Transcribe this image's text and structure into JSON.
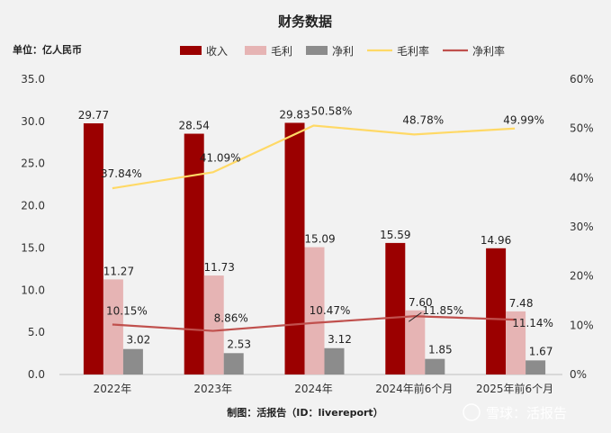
{
  "chart_data": {
    "type": "bar",
    "title": "财务数据",
    "unit_label": "单位：亿人民币",
    "categories": [
      "2022年",
      "2023年",
      "2024年",
      "2024年前6个月",
      "2025年前6个月"
    ],
    "y_left": {
      "min": 0,
      "max": 35,
      "step": 5,
      "ticks": [
        "0.0",
        "5.0",
        "10.0",
        "15.0",
        "20.0",
        "25.0",
        "30.0",
        "35.0"
      ]
    },
    "y_right": {
      "min": 0,
      "max": 60,
      "step": 10,
      "ticks": [
        "0%",
        "10%",
        "20%",
        "30%",
        "40%",
        "50%",
        "60%"
      ]
    },
    "bar_series": [
      {
        "name": "收入",
        "color": "#9b0000",
        "values": [
          29.77,
          28.54,
          29.83,
          15.59,
          14.96
        ],
        "labels": [
          "29.77",
          "28.54",
          "29.83",
          "15.59",
          "14.96"
        ]
      },
      {
        "name": "毛利",
        "color": "#e6b4b4",
        "values": [
          11.27,
          11.73,
          15.09,
          7.6,
          7.48
        ],
        "labels": [
          "11.27",
          "11.73",
          "15.09",
          "7.60",
          "7.48"
        ]
      },
      {
        "name": "净利",
        "color": "#8c8c8c",
        "values": [
          3.02,
          2.53,
          3.12,
          1.85,
          1.67
        ],
        "labels": [
          "3.02",
          "2.53",
          "3.12",
          "1.85",
          "1.67"
        ]
      }
    ],
    "line_series": [
      {
        "name": "毛利率",
        "axis": "right",
        "color": "#ffd966",
        "label_color": "#f0b400",
        "values": [
          37.84,
          41.09,
          50.58,
          48.78,
          49.99
        ],
        "labels": [
          "37.84%",
          "41.09%",
          "50.58%",
          "48.78%",
          "49.99%"
        ]
      },
      {
        "name": "净利率",
        "axis": "right",
        "color": "#c0504d",
        "label_color": "#e02020",
        "values": [
          10.15,
          8.86,
          10.47,
          11.85,
          11.14
        ],
        "labels": [
          "10.15%",
          "8.86%",
          "10.47%",
          "11.85%",
          "11.14%"
        ]
      }
    ],
    "footer": "制图：活报告（ID：livereport）",
    "watermark": "雪球：活报告"
  }
}
